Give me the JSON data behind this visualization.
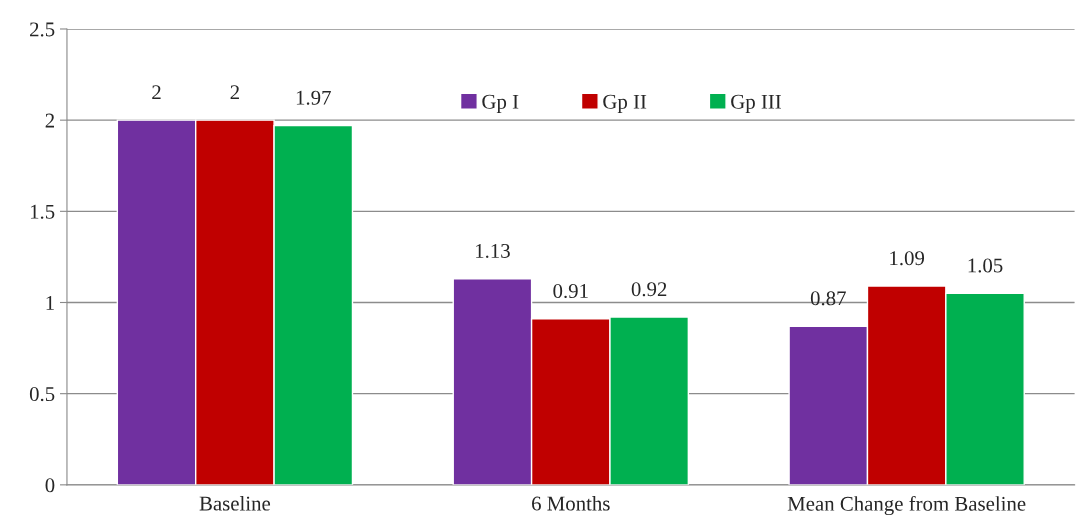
{
  "chart_data": {
    "type": "bar",
    "categories": [
      "Baseline",
      "6 Months",
      "Mean Change from Baseline"
    ],
    "series": [
      {
        "name": "Gp I",
        "color": "#7030a0",
        "values": [
          2,
          1.13,
          0.87
        ]
      },
      {
        "name": "Gp II",
        "color": "#c00000",
        "values": [
          2,
          0.91,
          1.09
        ]
      },
      {
        "name": "Gp III",
        "color": "#00b050",
        "values": [
          1.97,
          0.92,
          1.05
        ]
      }
    ],
    "ylim": [
      0,
      2.5
    ],
    "yticks": [
      0,
      0.5,
      1,
      1.5,
      2,
      2.5
    ],
    "grid": "y",
    "legend": "top",
    "data_labels": true
  }
}
